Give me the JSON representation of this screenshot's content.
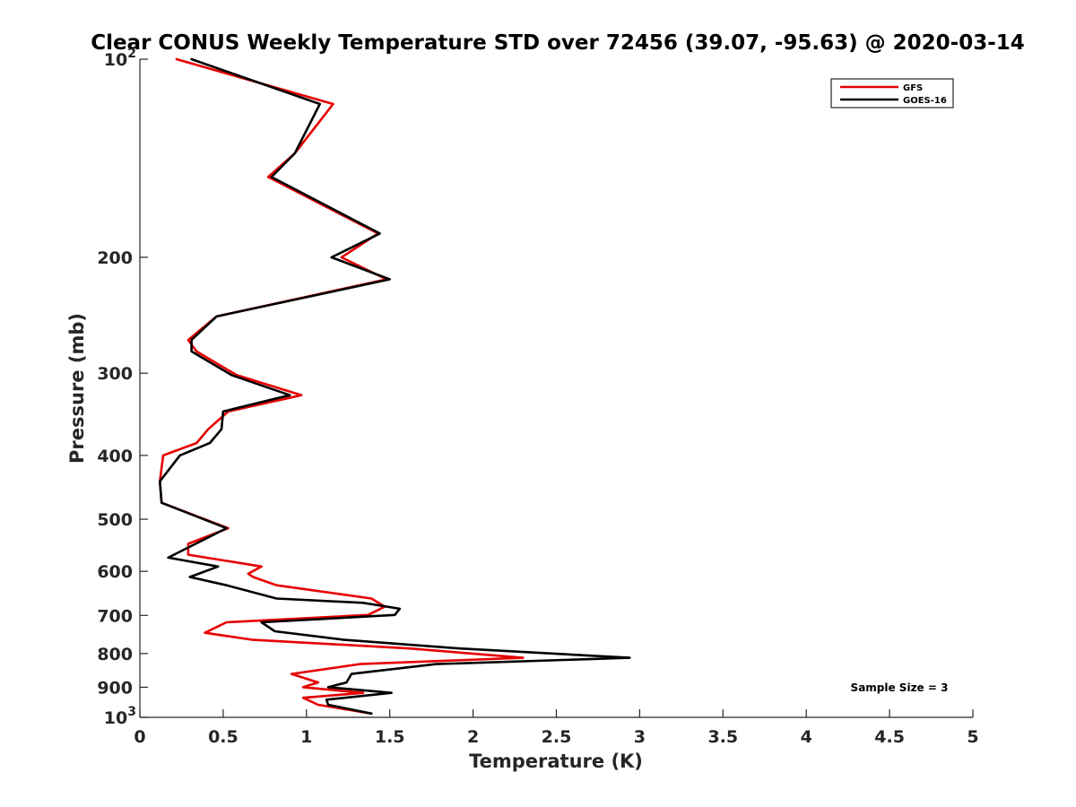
{
  "chart_data": {
    "type": "line",
    "title": "Clear CONUS Weekly Temperature STD over 72456 (39.07, -95.63) @ 2020-03-14",
    "xlabel": "Temperature (K)",
    "ylabel": "Pressure (mb)",
    "xlim": [
      0,
      5
    ],
    "ylim": [
      100,
      1000
    ],
    "y_scale": "log",
    "y_reversed": true,
    "grid": false,
    "legend_position": "top-right",
    "x_ticks": [
      0,
      0.5,
      1,
      1.5,
      2,
      2.5,
      3,
      3.5,
      4,
      4.5,
      5
    ],
    "x_tick_labels": [
      "0",
      "0.5",
      "1",
      "1.5",
      "2",
      "2.5",
      "3",
      "3.5",
      "4",
      "4.5",
      "5"
    ],
    "y_ticks": [
      100,
      200,
      300,
      400,
      500,
      600,
      700,
      800,
      900,
      1000
    ],
    "y_tick_labels": [
      {
        "base": "10",
        "exp": "2"
      },
      {
        "base": "200",
        "exp": ""
      },
      {
        "base": "300",
        "exp": ""
      },
      {
        "base": "400",
        "exp": ""
      },
      {
        "base": "500",
        "exp": ""
      },
      {
        "base": "600",
        "exp": ""
      },
      {
        "base": "700",
        "exp": ""
      },
      {
        "base": "800",
        "exp": ""
      },
      {
        "base": "900",
        "exp": ""
      },
      {
        "base": "10",
        "exp": "3"
      }
    ],
    "annotation": "Sample Size = 3",
    "series": [
      {
        "name": "GFS",
        "color": "#e60000",
        "points": [
          [
            0.22,
            100
          ],
          [
            1.16,
            117
          ],
          [
            0.93,
            139
          ],
          [
            0.77,
            151
          ],
          [
            1.43,
            184
          ],
          [
            1.21,
            200
          ],
          [
            1.48,
            216
          ],
          [
            0.46,
            246
          ],
          [
            0.29,
            267
          ],
          [
            0.34,
            278
          ],
          [
            0.58,
            302
          ],
          [
            0.97,
            324
          ],
          [
            0.53,
            343
          ],
          [
            0.41,
            365
          ],
          [
            0.34,
            383
          ],
          [
            0.14,
            400
          ],
          [
            0.12,
            438
          ],
          [
            0.13,
            472
          ],
          [
            0.53,
            516
          ],
          [
            0.29,
            545
          ],
          [
            0.29,
            566
          ],
          [
            0.73,
            590
          ],
          [
            0.65,
            605
          ],
          [
            0.68,
            612
          ],
          [
            0.82,
            630
          ],
          [
            1.39,
            660
          ],
          [
            1.47,
            679
          ],
          [
            1.37,
            699
          ],
          [
            0.52,
            717
          ],
          [
            0.39,
            744
          ],
          [
            0.67,
            762
          ],
          [
            1.62,
            786
          ],
          [
            2.3,
            812
          ],
          [
            1.32,
            830
          ],
          [
            0.91,
            859
          ],
          [
            1.07,
            885
          ],
          [
            0.98,
            900
          ],
          [
            1.34,
            918
          ],
          [
            0.98,
            934
          ],
          [
            1.07,
            957
          ],
          [
            1.39,
            987
          ]
        ]
      },
      {
        "name": "GOES-16",
        "color": "#000000",
        "points": [
          [
            0.31,
            100
          ],
          [
            1.08,
            117
          ],
          [
            0.93,
            139
          ],
          [
            0.79,
            151
          ],
          [
            1.44,
            184
          ],
          [
            1.15,
            200
          ],
          [
            1.5,
            216
          ],
          [
            0.46,
            246
          ],
          [
            0.31,
            267
          ],
          [
            0.31,
            278
          ],
          [
            0.55,
            302
          ],
          [
            0.9,
            324
          ],
          [
            0.5,
            343
          ],
          [
            0.49,
            365
          ],
          [
            0.42,
            383
          ],
          [
            0.24,
            400
          ],
          [
            0.12,
            438
          ],
          [
            0.13,
            472
          ],
          [
            0.52,
            516
          ],
          [
            0.17,
            572
          ],
          [
            0.47,
            590
          ],
          [
            0.3,
            612
          ],
          [
            0.52,
            630
          ],
          [
            0.82,
            660
          ],
          [
            1.34,
            670
          ],
          [
            1.56,
            684
          ],
          [
            1.53,
            699
          ],
          [
            0.73,
            717
          ],
          [
            0.81,
            740
          ],
          [
            1.22,
            762
          ],
          [
            1.92,
            786
          ],
          [
            2.94,
            812
          ],
          [
            1.78,
            830
          ],
          [
            1.27,
            859
          ],
          [
            1.24,
            885
          ],
          [
            1.13,
            900
          ],
          [
            1.51,
            918
          ],
          [
            1.12,
            940
          ],
          [
            1.13,
            957
          ],
          [
            1.39,
            987
          ]
        ]
      }
    ]
  }
}
